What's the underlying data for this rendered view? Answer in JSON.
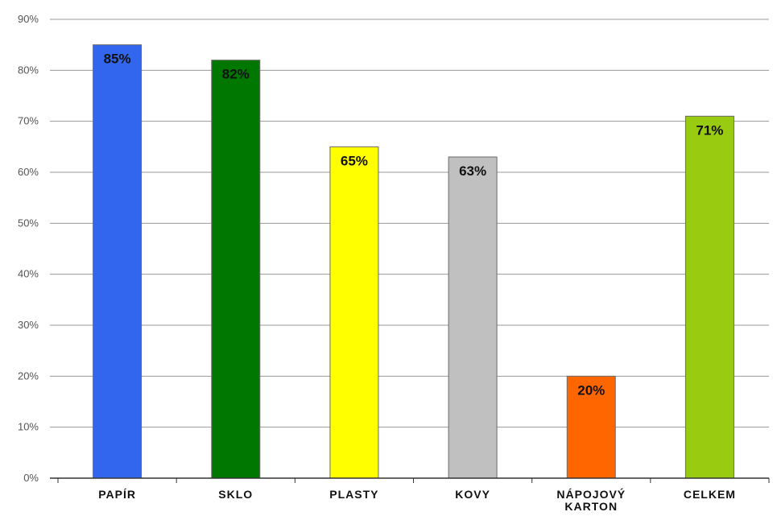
{
  "chart_data": {
    "type": "bar",
    "categories": [
      "PAPÍR",
      "SKLO",
      "PLASTY",
      "KOVY",
      "NÁPOJOVÝ KARTON",
      "CELKEM"
    ],
    "category_lines": [
      [
        "PAPÍR"
      ],
      [
        "SKLO"
      ],
      [
        "PLASTY"
      ],
      [
        "KOVY"
      ],
      [
        "NÁPOJOVÝ",
        "KARTON"
      ],
      [
        "CELKEM"
      ]
    ],
    "values": [
      85,
      82,
      65,
      63,
      20,
      71
    ],
    "data_labels": [
      "85%",
      "82%",
      "65%",
      "63%",
      "20%",
      "71%"
    ],
    "colors": [
      "#3366ee",
      "#007700",
      "#ffff00",
      "#c0c0c0",
      "#ff6600",
      "#99cc11"
    ],
    "ylim": [
      0,
      90
    ],
    "yticks": [
      0,
      10,
      20,
      30,
      40,
      50,
      60,
      70,
      80,
      90
    ],
    "ytick_labels": [
      "0%",
      "10%",
      "20%",
      "30%",
      "40%",
      "50%",
      "60%",
      "70%",
      "80%",
      "90%"
    ],
    "grid": true,
    "legend": "none",
    "title": "",
    "xlabel": "",
    "ylabel": ""
  }
}
